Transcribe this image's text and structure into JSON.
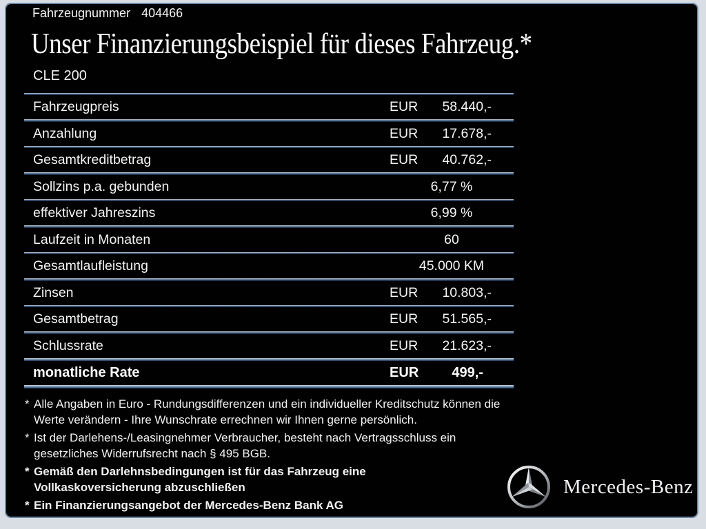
{
  "header": {
    "vehicle_number_label": "Fahrzeugnummer",
    "vehicle_number": "404466",
    "title": "Unser Finanzierungsbeispiel für dieses Fahrzeug.*",
    "model": "CLE 200"
  },
  "table": {
    "rows": [
      {
        "label": "Fahrzeugpreis",
        "currency": "EUR",
        "value": "58.440,-"
      },
      {
        "label": "Anzahlung",
        "currency": "EUR",
        "value": "17.678,-"
      },
      {
        "label": "Gesamtkreditbetrag",
        "currency": "EUR",
        "value": "40.762,-"
      },
      {
        "label": "Sollzins p.a. gebunden",
        "value": "6,77 %"
      },
      {
        "label": "effektiver Jahreszins",
        "value": "6,99 %"
      },
      {
        "label": "Laufzeit in Monaten",
        "value": "60"
      },
      {
        "label": "Gesamtlaufleistung",
        "value": "45.000 KM"
      },
      {
        "label": "Zinsen",
        "currency": "EUR",
        "value": "10.803,-"
      },
      {
        "label": "Gesamtbetrag",
        "currency": "EUR",
        "value": "51.565,-"
      },
      {
        "label": "Schlussrate",
        "currency": "EUR",
        "value": "21.623,-"
      },
      {
        "label": "monatliche Rate",
        "currency": "EUR",
        "value": "499,-",
        "bold": true
      }
    ]
  },
  "footnotes": [
    {
      "marker": "*",
      "bold": false,
      "text": "Alle Angaben in Euro - Rundungsdifferenzen und ein individueller Kreditschutz können die\nWerte verändern - Ihre Wunschrate errechnen wir Ihnen gerne persönlich."
    },
    {
      "marker": "*",
      "bold": false,
      "text": "Ist der Darlehens-/Leasingnehmer Verbraucher, besteht nach Vertragsschluss ein\ngesetzliches Widerrufsrecht nach § 495 BGB."
    },
    {
      "marker": "*",
      "bold": true,
      "text": "Gemäß den Darlehnsbedingungen ist für das Fahrzeug eine\nVollkaskoversicherung abzuschließen"
    },
    {
      "marker": "*",
      "bold": true,
      "text": "Ein Finanzierungsangebot der Mercedes-Benz Bank AG"
    }
  ],
  "brand": {
    "logo": "mercedes-star-icon",
    "wordmark": "Mercedes-Benz"
  },
  "colors": {
    "panel_background": "#010102",
    "frame_outer": "#d9dde4",
    "frame_accent": "#6c88a2",
    "text": "#f2f2f2",
    "separator_light": "#b6bcc4",
    "separator_dark": "#0e1c31"
  }
}
